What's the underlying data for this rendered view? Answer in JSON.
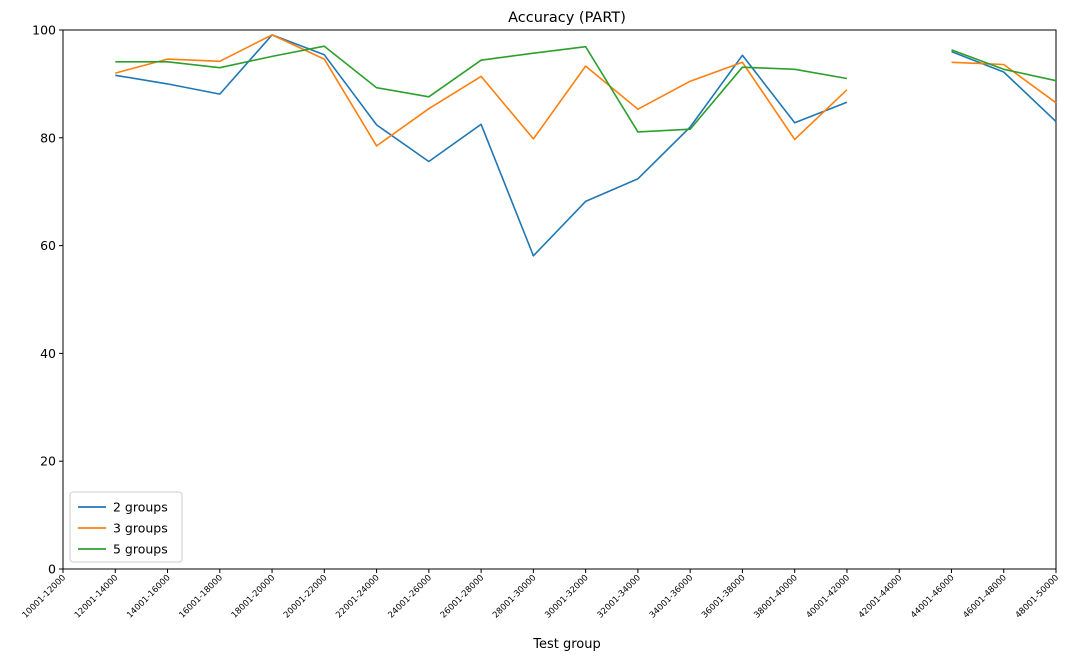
{
  "chart_data": {
    "type": "line",
    "title": "Accuracy (PART)",
    "xlabel": "Test group",
    "ylabel": "",
    "ylim": [
      0,
      100
    ],
    "yticks": [
      0,
      20,
      40,
      60,
      80,
      100
    ],
    "grid": false,
    "legend_position": "lower-left",
    "categories": [
      "10001-12000",
      "12001-14000",
      "14001-16000",
      "16001-18000",
      "18001-20000",
      "20001-22000",
      "22001-24000",
      "24001-26000",
      "26001-28000",
      "28001-30000",
      "30001-32000",
      "32001-34000",
      "34001-36000",
      "36001-38000",
      "38001-40000",
      "40001-42000",
      "42001-44000",
      "44001-46000",
      "46001-48000",
      "48001-50000"
    ],
    "series": [
      {
        "name": "2 groups",
        "color": "#1f77b4",
        "values": [
          null,
          91.6,
          90.0,
          88.1,
          99.1,
          95.4,
          82.4,
          75.6,
          82.5,
          58.1,
          68.2,
          72.4,
          82.0,
          95.3,
          82.8,
          86.6,
          null,
          96.0,
          92.2,
          83.0
        ]
      },
      {
        "name": "3 groups",
        "color": "#ff7f0e",
        "values": [
          null,
          92.0,
          94.6,
          94.2,
          99.1,
          94.6,
          78.5,
          85.4,
          91.4,
          79.8,
          93.3,
          85.3,
          90.5,
          94.0,
          79.7,
          88.9,
          null,
          94.0,
          93.6,
          86.5
        ]
      },
      {
        "name": "5 groups",
        "color": "#2ca02c",
        "values": [
          null,
          94.1,
          94.1,
          93.0,
          95.1,
          97.0,
          89.3,
          87.6,
          94.4,
          95.7,
          96.9,
          81.1,
          81.6,
          93.1,
          92.7,
          91.0,
          null,
          96.3,
          92.7,
          90.6
        ]
      }
    ]
  }
}
